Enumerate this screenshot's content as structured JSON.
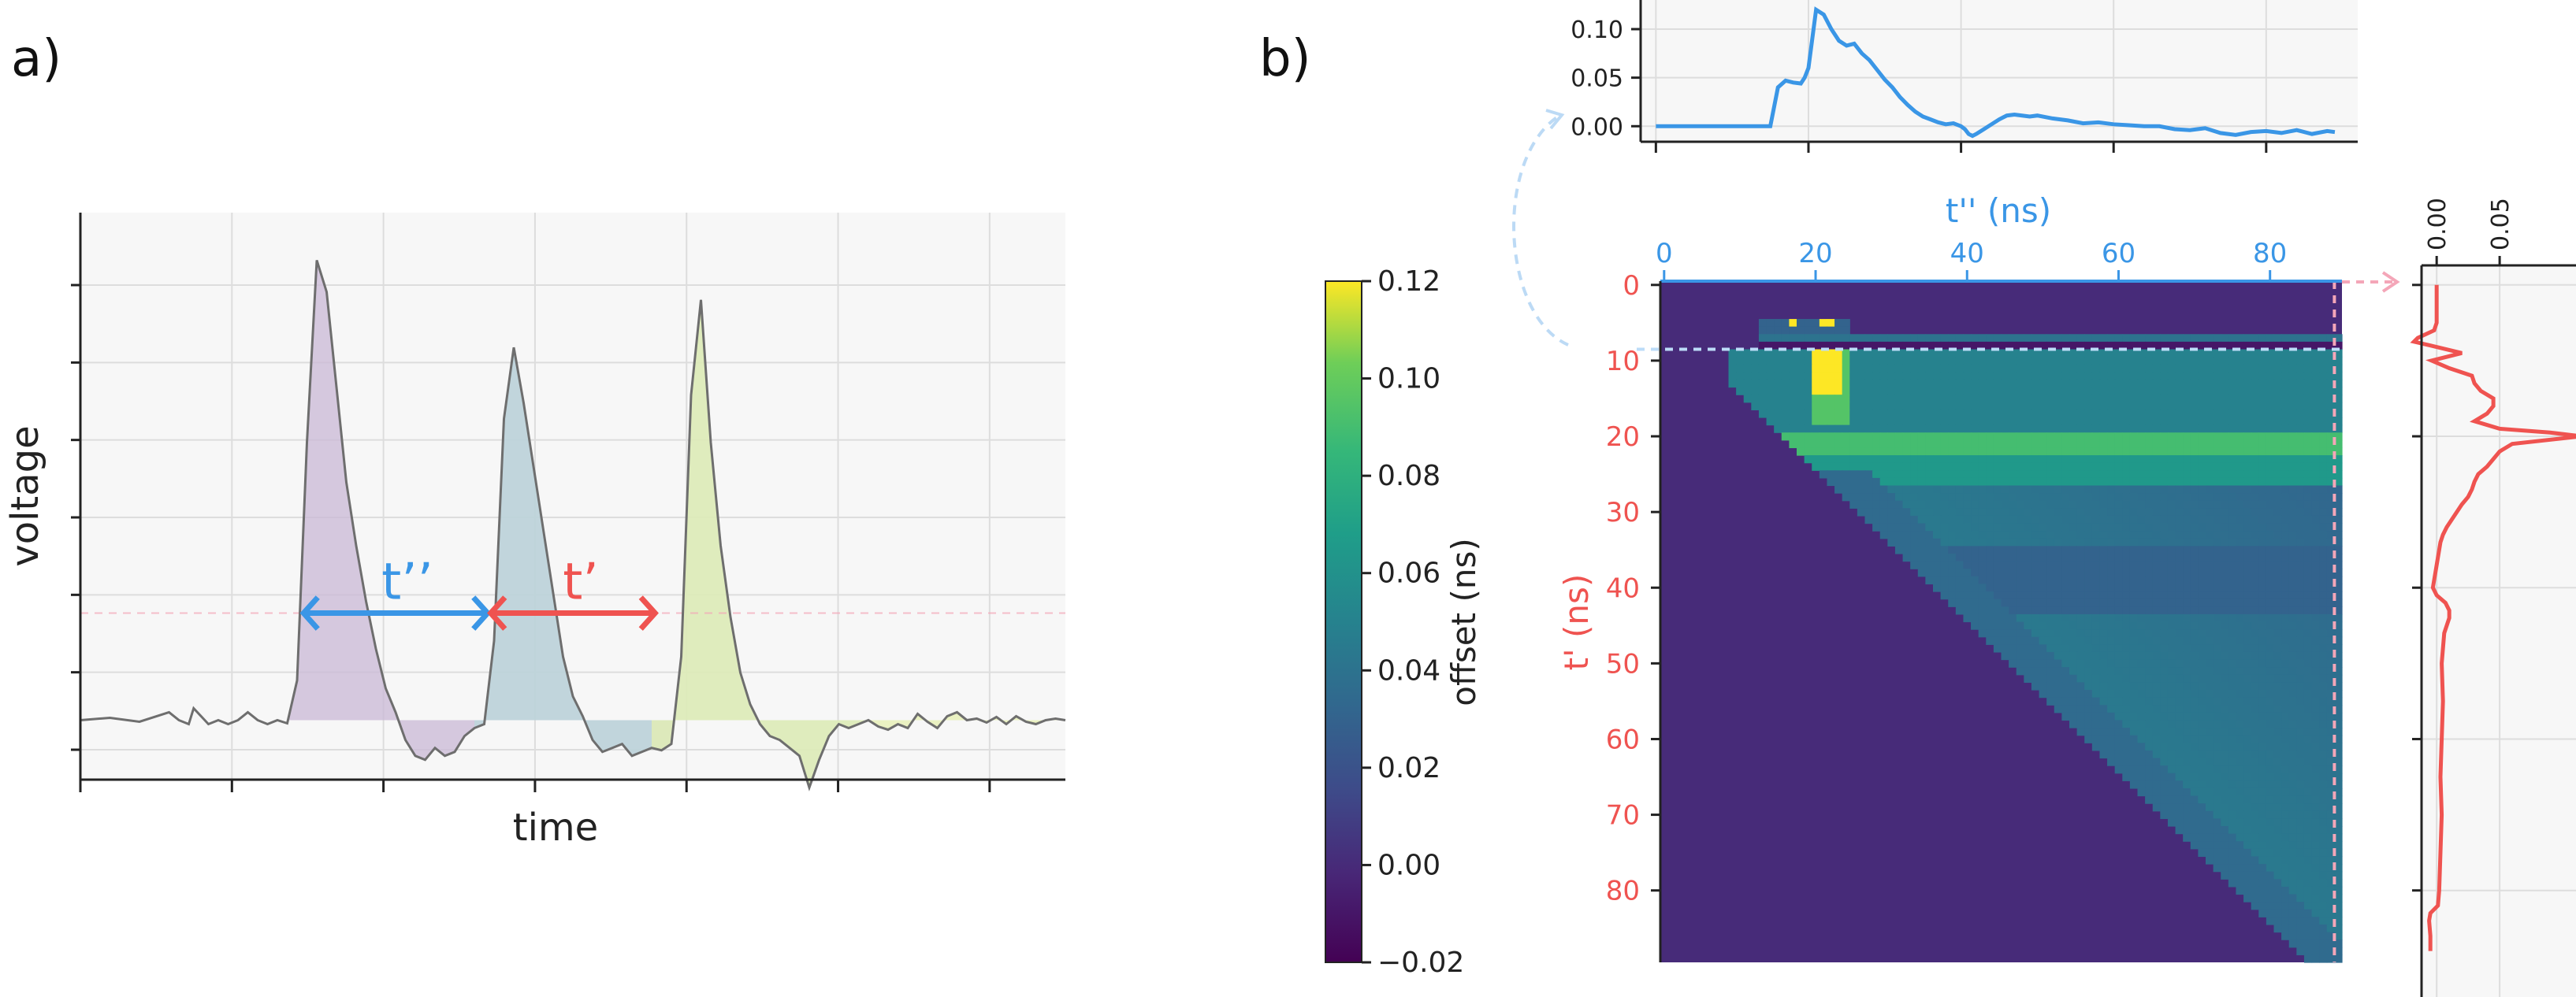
{
  "panel_labels": {
    "a": "a)",
    "b": "b)"
  },
  "colors": {
    "blue": "#3a96e6",
    "red": "#ef5350",
    "pink": "#f4a6b8",
    "grid": "#dddddd",
    "panel_bg": "#f7f7f7",
    "trace": "#6e6e6e"
  },
  "chart_data": [
    {
      "id": "waveform",
      "type": "area",
      "xlabel": "time",
      "ylabel": "voltage",
      "annotations": {
        "t_double_prime": "t’’",
        "t_prime": "t’"
      },
      "fills": [
        "#c9b8d6",
        "#b9dadb",
        "#e6efb0"
      ],
      "x_range": [
        0,
        100
      ],
      "y_range": [
        -0.75,
        6.4
      ],
      "x": [
        0,
        3,
        6,
        9,
        10,
        11,
        11.5,
        13,
        14,
        15,
        16,
        17,
        18,
        19,
        20,
        21,
        22,
        23,
        24,
        25,
        26,
        27,
        28,
        29,
        30,
        31,
        32,
        33,
        34,
        35,
        36,
        37,
        38,
        39,
        40,
        41,
        42,
        43,
        44,
        45,
        46,
        47,
        48,
        49,
        50,
        51,
        52,
        53,
        54,
        55,
        56,
        57,
        58,
        59,
        60,
        61,
        62,
        63,
        64,
        65,
        66,
        67,
        68,
        69,
        70,
        71,
        72,
        73,
        74,
        75,
        76,
        77,
        78,
        79,
        80,
        81,
        82,
        83,
        84,
        85,
        86,
        87,
        88,
        89,
        90,
        91,
        92,
        93,
        94,
        95,
        96,
        97,
        98,
        99,
        100
      ],
      "y": [
        0,
        0.03,
        -0.02,
        0.1,
        0,
        -0.05,
        0.15,
        -0.05,
        0,
        -0.05,
        0,
        0.1,
        0,
        -0.05,
        0,
        -0.04,
        0.5,
        3.5,
        5.8,
        5.4,
        4.2,
        3.0,
        2.2,
        1.5,
        0.9,
        0.4,
        0.1,
        -0.25,
        -0.45,
        -0.5,
        -0.35,
        -0.45,
        -0.4,
        -0.2,
        -0.1,
        -0.05,
        1.0,
        3.8,
        4.7,
        4.0,
        3.2,
        2.4,
        1.6,
        0.8,
        0.3,
        0.05,
        -0.25,
        -0.4,
        -0.35,
        -0.3,
        -0.45,
        -0.4,
        -0.35,
        -0.38,
        -0.3,
        0.8,
        4.1,
        5.3,
        3.5,
        2.2,
        1.3,
        0.6,
        0.2,
        -0.05,
        -0.2,
        -0.25,
        -0.35,
        -0.45,
        -0.85,
        -0.5,
        -0.2,
        -0.05,
        -0.1,
        -0.05,
        0,
        -0.08,
        -0.12,
        -0.05,
        -0.1,
        0.08,
        -0.02,
        -0.1,
        0.05,
        0.1,
        0,
        0.02,
        -0.03,
        0.04,
        -0.05,
        0.05,
        -0.02,
        -0.05,
        0,
        0.02,
        0
      ],
      "pulse_ranges": [
        [
          21,
          60
        ],
        [
          40,
          80
        ],
        [
          58,
          100
        ]
      ],
      "threshold_y": 1.35,
      "arrow_t_double_prime_x": [
        22.5,
        41.5
      ],
      "arrow_t_prime_x": [
        41.5,
        58.5
      ]
    },
    {
      "id": "top-projection",
      "type": "line",
      "yticks": [
        "0.10",
        "0.05",
        "0.00"
      ],
      "ytick_values": [
        0.1,
        0.05,
        0.0
      ],
      "y_range": [
        -0.016,
        0.13
      ],
      "x_range": [
        -2,
        92
      ],
      "x": [
        0,
        5,
        10,
        14,
        15,
        15.5,
        16,
        17,
        18,
        19,
        19.5,
        20,
        20.5,
        21,
        22,
        23,
        24,
        25,
        26,
        27,
        28,
        29,
        30,
        31,
        32,
        33,
        34,
        35,
        36,
        37,
        38,
        39,
        40,
        40.5,
        41,
        41.5,
        42,
        43,
        44,
        45,
        46,
        47,
        48,
        49,
        50,
        52,
        54,
        56,
        58,
        60,
        62,
        64,
        66,
        68,
        70,
        72,
        74,
        76,
        78,
        80,
        82,
        84,
        86,
        88,
        89
      ],
      "y": [
        0,
        0,
        0,
        0,
        0,
        0.02,
        0.04,
        0.047,
        0.045,
        0.044,
        0.05,
        0.06,
        0.09,
        0.12,
        0.115,
        0.1,
        0.088,
        0.083,
        0.085,
        0.075,
        0.068,
        0.058,
        0.048,
        0.04,
        0.03,
        0.022,
        0.015,
        0.01,
        0.007,
        0.004,
        0.002,
        0.003,
        0,
        -0.003,
        -0.008,
        -0.01,
        -0.008,
        -0.003,
        0.002,
        0.007,
        0.011,
        0.012,
        0.011,
        0.01,
        0.011,
        0.008,
        0.006,
        0.003,
        0.004,
        0.002,
        0.001,
        0,
        0,
        -0.003,
        -0.004,
        -0.002,
        -0.007,
        -0.009,
        -0.006,
        -0.005,
        -0.007,
        -0.004,
        -0.008,
        -0.005,
        -0.006
      ]
    },
    {
      "id": "heatmap",
      "type": "heatmap",
      "xlabel": "t'' (ns)",
      "ylabel": "t' (ns)",
      "xticks": [
        "0",
        "20",
        "40",
        "60",
        "80"
      ],
      "xtick_values": [
        0,
        20,
        40,
        60,
        80
      ],
      "yticks": [
        "0",
        "10",
        "20",
        "30",
        "40",
        "50",
        "60",
        "70",
        "80"
      ],
      "ytick_values": [
        0,
        10,
        20,
        30,
        40,
        50,
        60,
        70,
        80
      ],
      "x_range": [
        0,
        89
      ],
      "y_range": [
        0,
        89
      ],
      "highlight_t_prime": 8.5,
      "highlight_t_double_prime": 88.5,
      "colorbar": {
        "label": "offset (ns)",
        "ticks": [
          "0.12",
          "0.10",
          "0.08",
          "0.06",
          "0.04",
          "0.02",
          "0.00",
          "−0.02"
        ],
        "tick_values": [
          0.12,
          0.1,
          0.08,
          0.06,
          0.04,
          0.02,
          0.0,
          -0.02
        ],
        "range": [
          -0.02,
          0.12
        ],
        "colormap": "viridis"
      }
    },
    {
      "id": "right-projection",
      "type": "line",
      "xticks": [
        "0.00",
        "0.05"
      ],
      "xtick_values": [
        0.0,
        0.05
      ],
      "x_range": [
        -0.012,
        0.13
      ],
      "y": [
        0,
        2,
        4,
        5,
        6,
        7,
        7.5,
        8,
        9,
        10,
        11,
        12,
        13,
        14,
        15,
        16,
        17,
        18,
        19,
        19.5,
        20,
        21,
        22,
        23,
        24,
        25,
        26,
        27,
        28,
        29,
        30,
        31,
        32,
        33,
        34,
        35,
        36,
        37,
        38,
        39,
        40,
        41,
        42,
        43,
        44,
        45,
        46,
        48,
        50,
        55,
        60,
        65,
        70,
        75,
        80,
        82,
        83,
        84,
        86,
        88
      ],
      "x": [
        0,
        0,
        0,
        0,
        -0.002,
        -0.015,
        -0.018,
        -0.005,
        0.02,
        -0.004,
        0.01,
        0.028,
        0.03,
        0.035,
        0.045,
        0.045,
        0.04,
        0.03,
        0.05,
        0.09,
        0.115,
        0.06,
        0.05,
        0.045,
        0.04,
        0.033,
        0.03,
        0.028,
        0.025,
        0.02,
        0.016,
        0.012,
        0.008,
        0.005,
        0.003,
        0.002,
        0.001,
        0,
        -0.001,
        -0.002,
        -0.003,
        0,
        0.007,
        0.01,
        0.01,
        0.008,
        0.006,
        0.005,
        0.004,
        0.005,
        0.004,
        0.003,
        0.004,
        0.003,
        0.002,
        0.001,
        -0.005,
        -0.006,
        -0.005,
        -0.005
      ]
    }
  ]
}
